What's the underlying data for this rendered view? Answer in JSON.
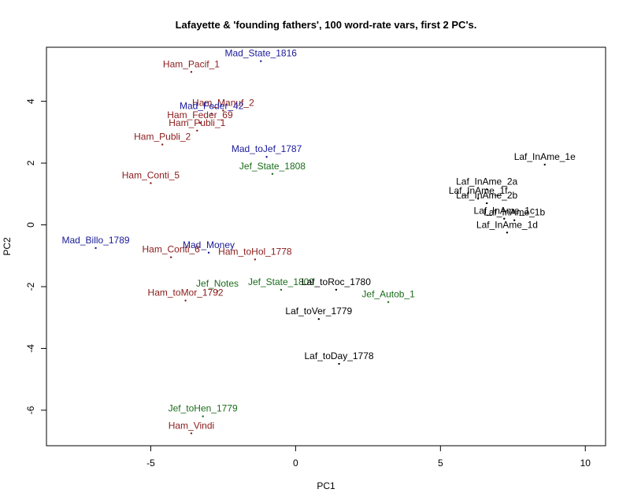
{
  "chart_data": {
    "type": "scatter",
    "title": "Lafayette & 'founding fathers', 100 word-rate vars, first 2 PC's.",
    "xlabel": "PC1",
    "ylabel": "PC2",
    "xlim": [
      -8.6,
      10.7
    ],
    "ylim": [
      -7.15,
      5.75
    ],
    "xticks": [
      -5,
      0,
      5,
      10
    ],
    "yticks": [
      -6,
      -4,
      -2,
      0,
      2,
      4
    ],
    "grid": false,
    "colors": {
      "Ham": "#8b1a1a",
      "Mad": "#1a1a99",
      "Jef": "#1a6b1a",
      "Laf": "#000000"
    },
    "points": [
      {
        "label": "Mad_State_1816",
        "group": "Mad",
        "x": -1.2,
        "y": 5.3
      },
      {
        "label": "Ham_Pacif_1",
        "group": "Ham",
        "x": -3.6,
        "y": 4.95
      },
      {
        "label": "Ham_Manuf_2",
        "group": "Ham",
        "x": -2.5,
        "y": 3.7
      },
      {
        "label": "Mad_Feder_42",
        "group": "Mad",
        "x": -2.9,
        "y": 3.6
      },
      {
        "label": "Ham_Feder_69",
        "group": "Ham",
        "x": -3.3,
        "y": 3.3
      },
      {
        "label": "Ham_Publi_1",
        "group": "Ham",
        "x": -3.4,
        "y": 3.05
      },
      {
        "label": "Ham_Publi_2",
        "group": "Ham",
        "x": -4.6,
        "y": 2.6
      },
      {
        "label": "Mad_toJef_1787",
        "group": "Mad",
        "x": -1.0,
        "y": 2.2
      },
      {
        "label": "Jef_State_1808",
        "group": "Jef",
        "x": -0.8,
        "y": 1.65
      },
      {
        "label": "Ham_Conti_5",
        "group": "Ham",
        "x": -5.0,
        "y": 1.35
      },
      {
        "label": "Laf_InAme_1e",
        "group": "Laf",
        "x": 8.6,
        "y": 1.95
      },
      {
        "label": "Laf_InAme_2a",
        "group": "Laf",
        "x": 6.6,
        "y": 1.15
      },
      {
        "label": "Laf_InAme_1f",
        "group": "Laf",
        "x": 6.3,
        "y": 0.85
      },
      {
        "label": "Laf_InAme_2b",
        "group": "Laf",
        "x": 6.6,
        "y": 0.7
      },
      {
        "label": "Laf_InAme_1c",
        "group": "Laf",
        "x": 7.2,
        "y": 0.2
      },
      {
        "label": "Laf_InAme_1b",
        "group": "Laf",
        "x": 7.55,
        "y": 0.15
      },
      {
        "label": "Laf_InAme_1d",
        "group": "Laf",
        "x": 7.3,
        "y": -0.25
      },
      {
        "label": "Mad_Billo_1789",
        "group": "Mad",
        "x": -6.9,
        "y": -0.75
      },
      {
        "label": "Mad_Money",
        "group": "Mad",
        "x": -3.0,
        "y": -0.9
      },
      {
        "label": "Ham_Conti_6",
        "group": "Ham",
        "x": -4.3,
        "y": -1.05
      },
      {
        "label": "Ham_toHol_1778",
        "group": "Ham",
        "x": -1.4,
        "y": -1.12
      },
      {
        "label": "Jef_Notes",
        "group": "Jef",
        "x": -2.7,
        "y": -2.15
      },
      {
        "label": "Jef_State_1809",
        "group": "Jef",
        "x": -0.5,
        "y": -2.1
      },
      {
        "label": "Laf_toRoc_1780",
        "group": "Laf",
        "x": 1.4,
        "y": -2.1
      },
      {
        "label": "Jef_Autob_1",
        "group": "Jef",
        "x": 3.2,
        "y": -2.5
      },
      {
        "label": "Ham_toMor_1792",
        "group": "Ham",
        "x": -3.8,
        "y": -2.45
      },
      {
        "label": "Laf_toVer_1779",
        "group": "Laf",
        "x": 0.8,
        "y": -3.05
      },
      {
        "label": "Laf_toDay_1778",
        "group": "Laf",
        "x": 1.5,
        "y": -4.5
      },
      {
        "label": "Jef_toHen_1779",
        "group": "Jef",
        "x": -3.2,
        "y": -6.2
      },
      {
        "label": "Ham_Vindi",
        "group": "Ham",
        "x": -3.6,
        "y": -6.75
      }
    ]
  }
}
